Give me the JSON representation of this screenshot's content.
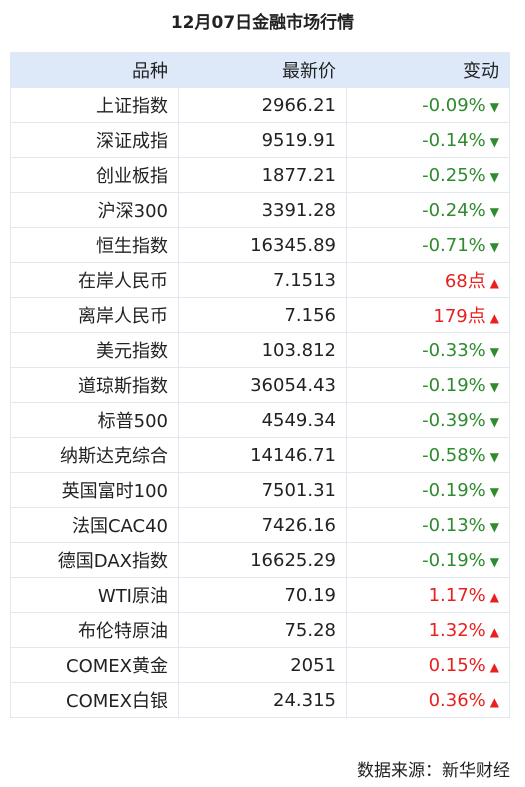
{
  "header": {
    "title": "12月07日金融市场行情"
  },
  "table": {
    "columns": [
      "品种",
      "最新价",
      "变动"
    ],
    "rows": [
      {
        "name": "上证指数",
        "price": "2966.21",
        "change": "-0.09%",
        "arrow": "▼",
        "color": "#2e8b2e"
      },
      {
        "name": "深证成指",
        "price": "9519.91",
        "change": "-0.14%",
        "arrow": "▼",
        "color": "#2e8b2e"
      },
      {
        "name": "创业板指",
        "price": "1877.21",
        "change": "-0.25%",
        "arrow": "▼",
        "color": "#2e8b2e"
      },
      {
        "name": "沪深300",
        "price": "3391.28",
        "change": "-0.24%",
        "arrow": "▼",
        "color": "#2e8b2e"
      },
      {
        "name": "恒生指数",
        "price": "16345.89",
        "change": "-0.71%",
        "arrow": "▼",
        "color": "#2e8b2e"
      },
      {
        "name": "在岸人民币",
        "price": "7.1513",
        "change": "68点",
        "arrow": "▲",
        "color": "#e8201e"
      },
      {
        "name": "离岸人民币",
        "price": "7.156",
        "change": "179点",
        "arrow": "▲",
        "color": "#e8201e"
      },
      {
        "name": "美元指数",
        "price": "103.812",
        "change": "-0.33%",
        "arrow": "▼",
        "color": "#2e8b2e"
      },
      {
        "name": "道琼斯指数",
        "price": "36054.43",
        "change": "-0.19%",
        "arrow": "▼",
        "color": "#2e8b2e"
      },
      {
        "name": "标普500",
        "price": "4549.34",
        "change": "-0.39%",
        "arrow": "▼",
        "color": "#2e8b2e"
      },
      {
        "name": "纳斯达克综合",
        "price": "14146.71",
        "change": "-0.58%",
        "arrow": "▼",
        "color": "#2e8b2e"
      },
      {
        "name": "英国富时100",
        "price": "7501.31",
        "change": "-0.19%",
        "arrow": "▼",
        "color": "#2e8b2e"
      },
      {
        "name": "法国CAC40",
        "price": "7426.16",
        "change": "-0.13%",
        "arrow": "▼",
        "color": "#2e8b2e"
      },
      {
        "name": "德国DAX指数",
        "price": "16625.29",
        "change": "-0.19%",
        "arrow": "▼",
        "color": "#2e8b2e"
      },
      {
        "name": "WTI原油",
        "price": "70.19",
        "change": "1.17%",
        "arrow": "▲",
        "color": "#e8201e"
      },
      {
        "name": "布伦特原油",
        "price": "75.28",
        "change": "1.32%",
        "arrow": "▲",
        "color": "#e8201e"
      },
      {
        "name": "COMEX黄金",
        "price": "2051",
        "change": "0.15%",
        "arrow": "▲",
        "color": "#e8201e"
      },
      {
        "name": "COMEX白银",
        "price": "24.315",
        "change": "0.36%",
        "arrow": "▲",
        "color": "#e8201e"
      }
    ]
  },
  "footer": {
    "source": "数据来源：新华财经"
  }
}
